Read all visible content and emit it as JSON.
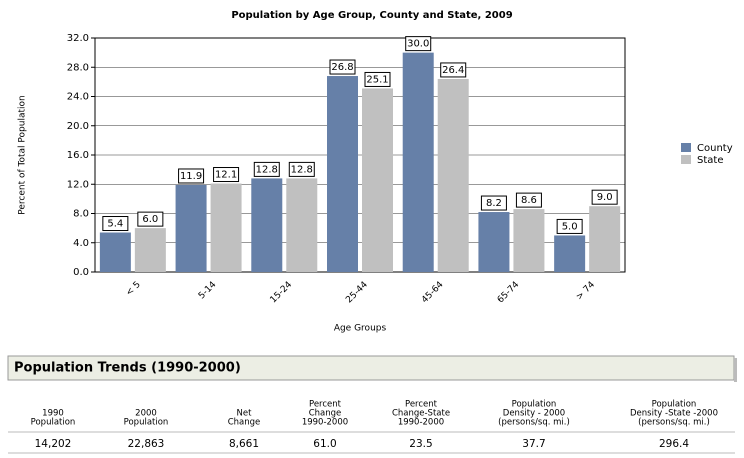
{
  "chart_data": {
    "type": "bar",
    "title": "Population by Age Group, County and State, 2009",
    "x_label": "Age Groups",
    "y_label": "Percent of Total Population",
    "categories": [
      "< 5",
      "5-14",
      "15-24",
      "25-44",
      "45-64",
      "65-74",
      "> 74"
    ],
    "series": [
      {
        "name": "County",
        "color": "#6680a8",
        "values": [
          5.4,
          11.9,
          12.8,
          26.8,
          30.0,
          8.2,
          5.0
        ],
        "value_labels": [
          "5.4",
          "11.9",
          "12.8",
          "26.8",
          "30.0",
          "8.2",
          "5.0"
        ]
      },
      {
        "name": "State",
        "color": "#c0c0c0",
        "values": [
          6.0,
          12.1,
          12.8,
          25.1,
          26.4,
          8.6,
          9.0
        ],
        "value_labels": [
          "6.0",
          "12.1",
          "12.8",
          "25.1",
          "26.4",
          "8.6",
          "9.0"
        ]
      }
    ],
    "ylim": [
      0,
      32
    ],
    "yticks": [
      {
        "value": 0,
        "label": "0.0"
      },
      {
        "value": 4,
        "label": "4.0"
      },
      {
        "value": 8,
        "label": "8.0"
      },
      {
        "value": 12,
        "label": "12.0"
      },
      {
        "value": 16,
        "label": "16.0"
      },
      {
        "value": 20,
        "label": "20.0"
      },
      {
        "value": 24,
        "label": "24.0"
      },
      {
        "value": 28,
        "label": "28.0"
      },
      {
        "value": 32,
        "label": "32.0"
      }
    ],
    "grid": true,
    "legend": "right"
  },
  "table": {
    "title": "Population Trends (1990-2000)",
    "headers": [
      [
        "1990",
        "Population"
      ],
      [
        "2000",
        "Population"
      ],
      [
        "Net",
        "Change"
      ],
      [
        "Percent",
        "Change",
        "1990-2000"
      ],
      [
        "Percent",
        "Change-State",
        "1990-2000"
      ],
      [
        "Population",
        "Density - 2000",
        "(persons/sq. mi.)"
      ],
      [
        "Population",
        "Density -State -2000",
        "(persons/sq. mi.)"
      ]
    ],
    "rows": [
      [
        "14,202",
        "22,863",
        "8,661",
        "61.0",
        "23.5",
        "37.7",
        "296.4"
      ]
    ]
  }
}
